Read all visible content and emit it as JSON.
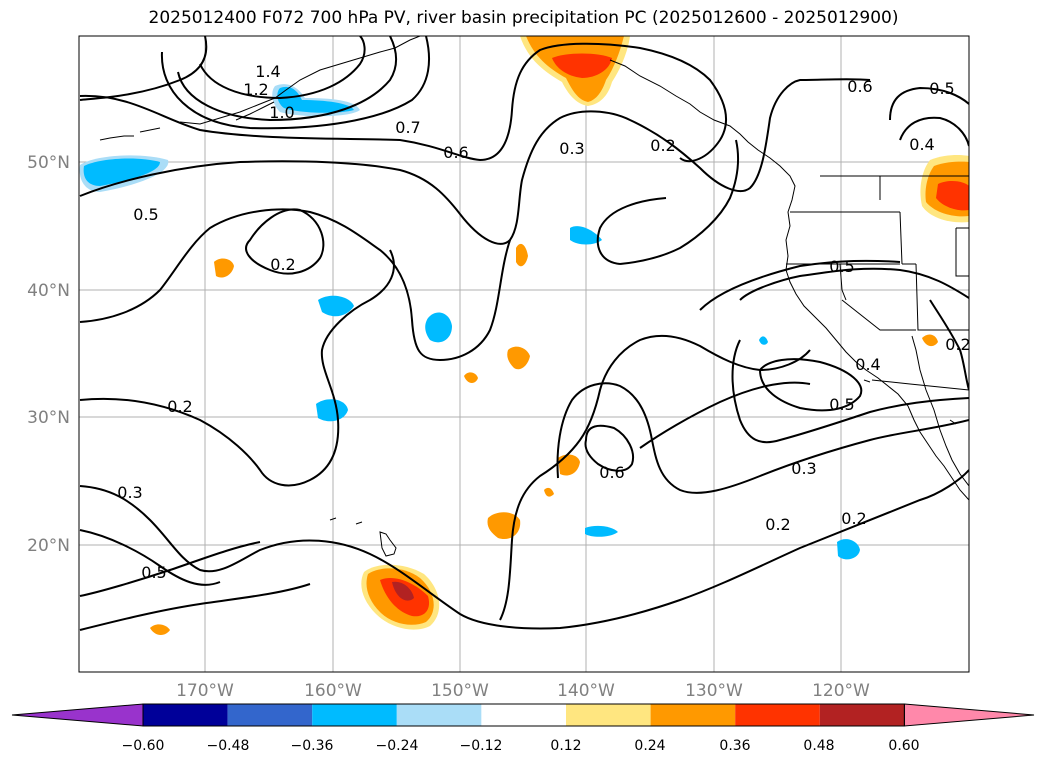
{
  "title": "2025012400 F072 700 hPa PV, river basin precipitation PC (2025012600 - 2025012900)",
  "map": {
    "lat_labels": [
      "50°N",
      "40°N",
      "30°N",
      "20°N"
    ],
    "lon_labels": [
      "170°W",
      "160°W",
      "150°W",
      "140°W",
      "130°W",
      "120°W"
    ],
    "contour_labels": [
      "1.4",
      "1.2",
      "1.0",
      "0.7",
      "0.6",
      "0.5",
      "0.2",
      "0.3",
      "0.2",
      "0.6",
      "0.5",
      "0.4",
      "0.5",
      "0.2",
      "0.2",
      "0.3",
      "0.5",
      "0.6",
      "0.5",
      "0.4",
      "0.3",
      "0.2",
      "0.2"
    ]
  },
  "colorbar": {
    "ticks": [
      "−0.60",
      "−0.48",
      "−0.36",
      "−0.24",
      "−0.12",
      "0.12",
      "0.24",
      "0.36",
      "0.48",
      "0.60"
    ],
    "colors": [
      "#9933cc",
      "#000099",
      "#3366cc",
      "#00bbff",
      "#aaddf7",
      "#ffffff",
      "#ffe680",
      "#ff9900",
      "#ff3300",
      "#b22222",
      "#ff88aa"
    ]
  }
}
